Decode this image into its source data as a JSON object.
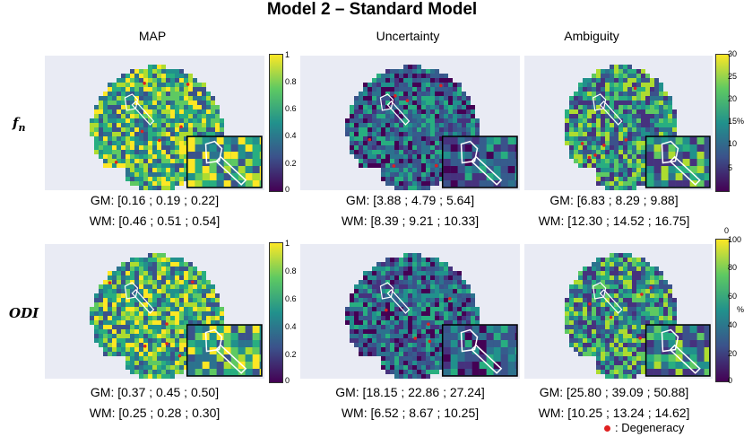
{
  "figure": {
    "title": "Model 2 – Standard Model",
    "columns": [
      "MAP",
      "Uncertainty",
      "Ambiguity"
    ],
    "rows": [
      {
        "label": "f",
        "label_sub": "n",
        "stats": {
          "map": {
            "gm": "GM: [0.16 ; 0.19 ; 0.22]",
            "wm": "WM: [0.46 ; 0.51 ; 0.54]"
          },
          "uncertainty": {
            "gm": "GM: [3.88 ; 4.79 ; 5.64]",
            "wm": "WM: [8.39 ; 9.21 ; 10.33]"
          },
          "ambiguity": {
            "gm": "GM: [6.83 ; 8.29 ; 9.88]",
            "wm": "WM: [12.30 ; 14.52 ; 16.75]"
          }
        },
        "colorbar_map": {
          "ticks": [
            "1",
            "0.8",
            "0.6",
            "0.4",
            "0.2",
            "0"
          ]
        },
        "colorbar_pct": {
          "ticks": [
            "30",
            "25",
            "20",
            "15",
            "10",
            "5"
          ],
          "unit": "%"
        }
      },
      {
        "label": "ODI",
        "stats": {
          "map": {
            "gm": "GM: [0.37 ; 0.45 ; 0.50]",
            "wm": "WM: [0.25 ; 0.28 ; 0.30]"
          },
          "uncertainty": {
            "gm": "GM: [18.15 ; 22.86 ; 27.24]",
            "wm": "WM: [6.52 ; 8.67 ; 10.25]"
          },
          "ambiguity": {
            "gm": "GM: [25.80 ; 39.09 ; 50.88]",
            "wm": "WM: [10.25 ; 13.24 ; 14.62]"
          }
        },
        "colorbar_map": {
          "ticks": [
            "1",
            "0.8",
            "0.6",
            "0.4",
            "0.2",
            "0"
          ]
        },
        "colorbar_pct": {
          "ticks": [
            "100",
            "80",
            "60",
            "40",
            "20",
            "0"
          ],
          "unit": "%",
          "top_label": "0"
        }
      }
    ],
    "legend": {
      "marker_color": "#e02020",
      "text": ": Degeneracy"
    },
    "colors": {
      "cmap_low": "#440154",
      "cmap_mid": "#21918c",
      "cmap_high": "#fde725",
      "degeneracy": "#e02020"
    }
  }
}
